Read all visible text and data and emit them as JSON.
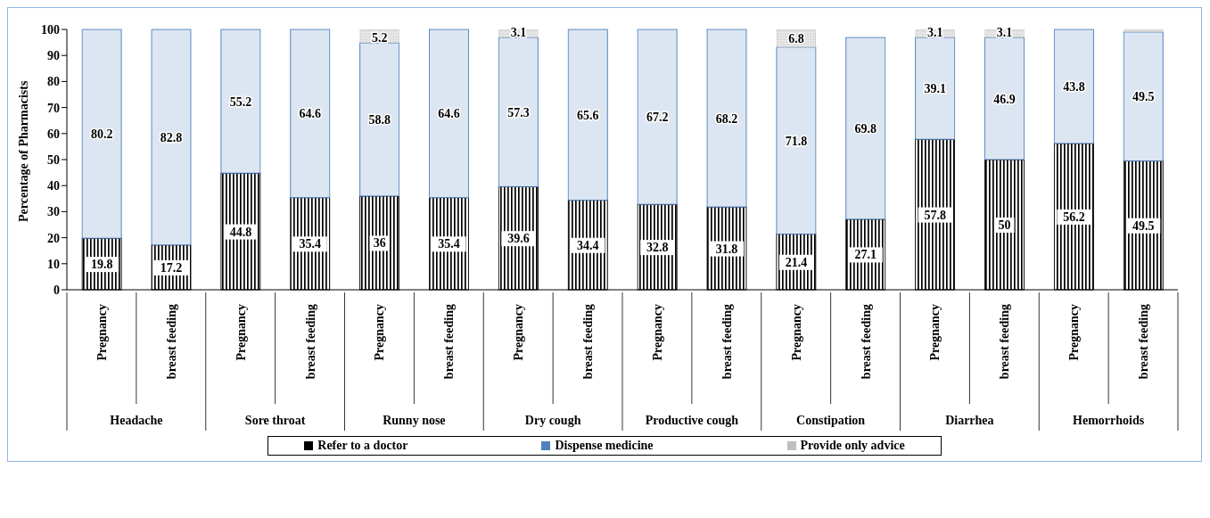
{
  "chart_data": {
    "type": "bar",
    "stacked": true,
    "ylabel": "Percentage of  Pharmacists",
    "categories": [
      "Pregnancy",
      "breast feeding",
      "Pregnancy",
      "breast feeding",
      "Pregnancy",
      "breast feeding",
      "Pregnancy",
      "breast feeding",
      "Pregnancy",
      "breast feeding",
      "Pregnancy",
      "breast feeding",
      "Pregnancy",
      "breast feeding",
      "Pregnancy",
      "breast feeding"
    ],
    "annotations": [
      "Headache",
      "Sore throat",
      "Runny nose",
      "Dry cough",
      "Productive cough",
      "Constipation",
      "Diarrhea",
      "Hemorrhoids"
    ],
    "series": [
      {
        "name": "Refer to a doctor",
        "color": "#000000",
        "values": [
          19.8,
          17.2,
          44.8,
          35.4,
          36,
          35.4,
          39.6,
          34.4,
          32.8,
          31.8,
          21.4,
          27.1,
          57.8,
          50,
          56.2,
          49.5
        ],
        "value_labels": [
          "19.8",
          "17.2",
          "44.8",
          "35.4",
          "36",
          "35.4",
          "39.6",
          "34.4",
          "32.8",
          "31.8",
          "21.4",
          "27.1",
          "57.8",
          "50",
          "56.2",
          "49.5"
        ]
      },
      {
        "name": "Dispense medicine",
        "color": "#4f81bd",
        "values": [
          80.2,
          82.8,
          55.2,
          64.6,
          58.8,
          64.6,
          57.3,
          65.6,
          67.2,
          68.2,
          71.8,
          69.8,
          39.1,
          46.9,
          43.8,
          49.5
        ],
        "value_labels": [
          "80.2",
          "82.8",
          "55.2",
          "64.6",
          "58.8",
          "64.6",
          "57.3",
          "65.6",
          "67.2",
          "68.2",
          "71.8",
          "69.8",
          "39.1",
          "46.9",
          "43.8",
          "49.5"
        ]
      },
      {
        "name": "Provide only advice",
        "color": "#bfbfbf",
        "values": [
          null,
          null,
          null,
          null,
          5.2,
          null,
          3.1,
          null,
          null,
          null,
          6.8,
          null,
          3.1,
          3.1,
          null,
          1
        ],
        "value_labels": [
          null,
          null,
          null,
          null,
          "5.2",
          null,
          "3.1",
          null,
          null,
          null,
          "6.8",
          null,
          "3.1",
          "3.1",
          null,
          null
        ]
      }
    ],
    "ylim": [
      0,
      100
    ],
    "yticks": [
      0,
      10,
      20,
      30,
      40,
      50,
      60,
      70,
      80,
      90,
      100
    ],
    "grid": false,
    "legend": "bottom"
  }
}
